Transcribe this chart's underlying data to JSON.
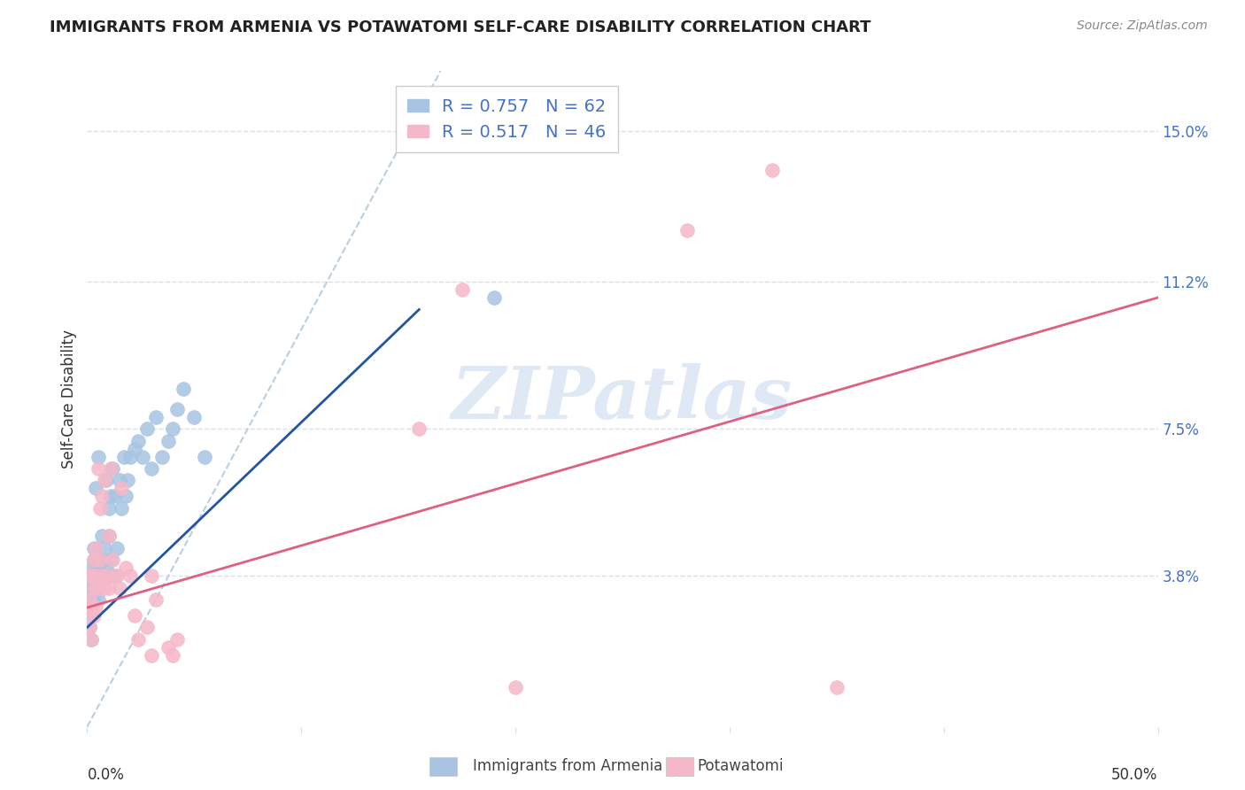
{
  "title": "IMMIGRANTS FROM ARMENIA VS POTAWATOMI SELF-CARE DISABILITY CORRELATION CHART",
  "source": "Source: ZipAtlas.com",
  "ylabel": "Self-Care Disability",
  "ytick_positions": [
    0.038,
    0.075,
    0.112,
    0.15
  ],
  "ytick_labels": [
    "3.8%",
    "7.5%",
    "11.2%",
    "15.0%"
  ],
  "xlim": [
    0.0,
    0.5
  ],
  "ylim": [
    0.0,
    0.165
  ],
  "legend1_r": "0.757",
  "legend1_n": "62",
  "legend2_r": "0.517",
  "legend2_n": "46",
  "legend1_label": "Immigrants from Armenia",
  "legend2_label": "Potawatomi",
  "blue_scatter_color": "#a8c4e2",
  "pink_scatter_color": "#f5b8c8",
  "blue_line_color": "#2255a0",
  "pink_line_color": "#e06080",
  "diag_color": "#b8cfe0",
  "watermark_color": "#c5d8ee",
  "watermark_text": "ZIPatlas",
  "grid_color": "#d8e0e8",
  "title_color": "#222222",
  "source_color": "#888888",
  "label_color": "#333333",
  "tick_color": "#4472c4",
  "legend_edge_color": "#cccccc",
  "background_color": "#ffffff",
  "blue_scatter_x": [
    0.001,
    0.001,
    0.001,
    0.001,
    0.002,
    0.002,
    0.002,
    0.002,
    0.002,
    0.003,
    0.003,
    0.003,
    0.003,
    0.003,
    0.003,
    0.004,
    0.004,
    0.004,
    0.004,
    0.005,
    0.005,
    0.005,
    0.005,
    0.006,
    0.006,
    0.006,
    0.007,
    0.007,
    0.007,
    0.008,
    0.008,
    0.009,
    0.009,
    0.01,
    0.01,
    0.01,
    0.011,
    0.011,
    0.012,
    0.012,
    0.013,
    0.014,
    0.015,
    0.016,
    0.017,
    0.018,
    0.019,
    0.02,
    0.022,
    0.024,
    0.026,
    0.028,
    0.03,
    0.032,
    0.035,
    0.038,
    0.04,
    0.042,
    0.045,
    0.05,
    0.055,
    0.19
  ],
  "blue_scatter_y": [
    0.03,
    0.035,
    0.038,
    0.025,
    0.032,
    0.035,
    0.028,
    0.04,
    0.022,
    0.038,
    0.032,
    0.038,
    0.042,
    0.035,
    0.045,
    0.038,
    0.035,
    0.06,
    0.038,
    0.04,
    0.032,
    0.035,
    0.068,
    0.038,
    0.042,
    0.038,
    0.048,
    0.042,
    0.038,
    0.038,
    0.045,
    0.04,
    0.062,
    0.038,
    0.048,
    0.055,
    0.042,
    0.058,
    0.038,
    0.065,
    0.058,
    0.045,
    0.062,
    0.055,
    0.068,
    0.058,
    0.062,
    0.068,
    0.07,
    0.072,
    0.068,
    0.075,
    0.065,
    0.078,
    0.068,
    0.072,
    0.075,
    0.08,
    0.085,
    0.078,
    0.068,
    0.108
  ],
  "pink_scatter_x": [
    0.001,
    0.001,
    0.001,
    0.002,
    0.002,
    0.002,
    0.003,
    0.003,
    0.003,
    0.004,
    0.004,
    0.004,
    0.005,
    0.005,
    0.006,
    0.006,
    0.007,
    0.007,
    0.008,
    0.008,
    0.009,
    0.01,
    0.01,
    0.011,
    0.012,
    0.013,
    0.014,
    0.015,
    0.016,
    0.018,
    0.02,
    0.022,
    0.024,
    0.028,
    0.03,
    0.03,
    0.032,
    0.038,
    0.04,
    0.042,
    0.155,
    0.175,
    0.2,
    0.28,
    0.32,
    0.35
  ],
  "pink_scatter_y": [
    0.038,
    0.032,
    0.025,
    0.03,
    0.038,
    0.022,
    0.042,
    0.035,
    0.028,
    0.038,
    0.045,
    0.03,
    0.065,
    0.035,
    0.042,
    0.055,
    0.058,
    0.038,
    0.062,
    0.035,
    0.038,
    0.048,
    0.035,
    0.065,
    0.042,
    0.038,
    0.038,
    0.035,
    0.06,
    0.04,
    0.038,
    0.028,
    0.022,
    0.025,
    0.018,
    0.038,
    0.032,
    0.02,
    0.018,
    0.022,
    0.075,
    0.11,
    0.01,
    0.125,
    0.14,
    0.01
  ],
  "blue_line_x": [
    0.0,
    0.155
  ],
  "blue_line_y_start": 0.025,
  "blue_line_y_end": 0.105,
  "pink_line_x": [
    0.0,
    0.5
  ],
  "pink_line_y_start": 0.03,
  "pink_line_y_end": 0.108,
  "diag_line_x": [
    0.0,
    0.165
  ],
  "diag_line_y": [
    0.0,
    0.165
  ]
}
